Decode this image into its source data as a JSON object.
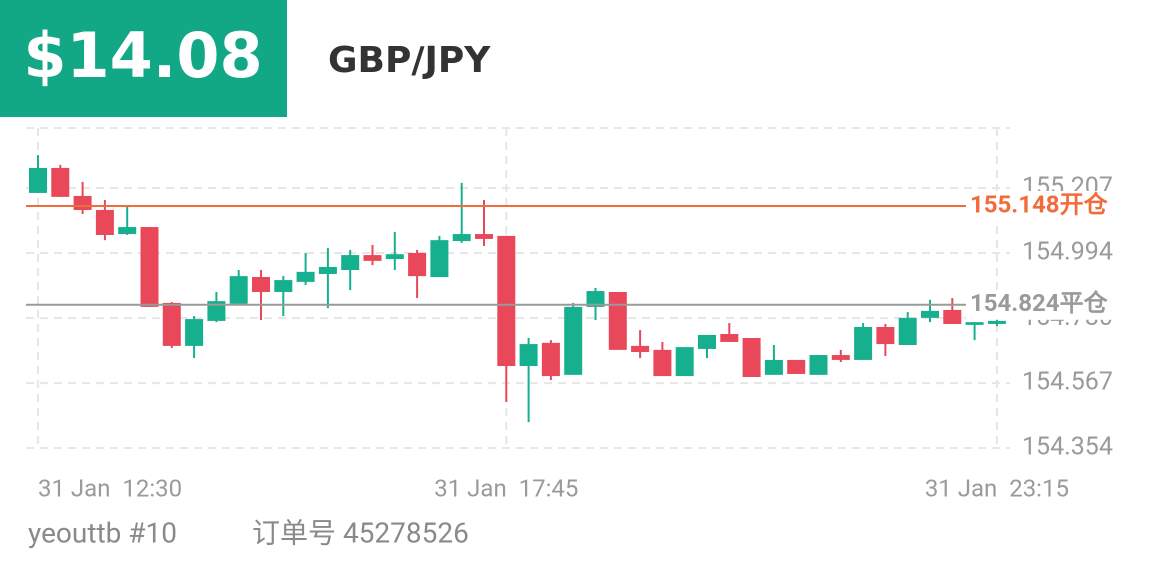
{
  "header": {
    "profit": "$14.08",
    "symbol": "GBP/JPY"
  },
  "footer": {
    "account": "yeouttb #10",
    "order": "订单号 45278526"
  },
  "chart_data": {
    "type": "candlestick",
    "categories": [
      "31 Jan  12:30",
      null,
      null,
      null,
      null,
      null,
      null,
      null,
      null,
      null,
      null,
      null,
      null,
      null,
      null,
      null,
      null,
      null,
      null,
      null,
      null,
      "31 Jan  17:45",
      null,
      null,
      null,
      null,
      null,
      null,
      null,
      null,
      null,
      null,
      null,
      null,
      null,
      null,
      null,
      null,
      null,
      null,
      null,
      null,
      null,
      "31 Jan  23:15"
    ],
    "open": [
      155.191,
      155.273,
      155.181,
      155.135,
      155.056,
      155.079,
      154.83,
      154.689,
      154.771,
      154.827,
      154.915,
      154.866,
      154.899,
      154.925,
      154.938,
      154.987,
      154.974,
      154.994,
      154.915,
      155.033,
      155.056,
      155.05,
      154.623,
      154.699,
      154.594,
      154.817,
      154.866,
      154.689,
      154.676,
      154.59,
      154.679,
      154.728,
      154.715,
      154.594,
      154.643,
      154.594,
      154.659,
      154.643,
      154.751,
      154.692,
      154.781,
      154.807,
      154.758,
      154.761
    ],
    "high": [
      155.315,
      155.283,
      155.227,
      155.168,
      155.151,
      155.079,
      154.833,
      154.787,
      154.866,
      154.938,
      154.938,
      154.918,
      154.994,
      155.01,
      155.004,
      155.02,
      155.063,
      155.004,
      155.05,
      155.224,
      155.168,
      155.05,
      154.715,
      154.708,
      154.83,
      154.879,
      154.866,
      154.741,
      154.702,
      154.685,
      154.725,
      154.764,
      154.715,
      154.692,
      154.643,
      154.659,
      154.676,
      154.764,
      154.761,
      154.8,
      154.84,
      154.846,
      154.767,
      154.781
    ],
    "low": [
      155.191,
      155.178,
      155.122,
      155.036,
      155.053,
      154.817,
      154.682,
      154.649,
      154.767,
      154.827,
      154.774,
      154.787,
      154.889,
      154.813,
      154.872,
      154.954,
      154.938,
      154.846,
      154.915,
      155.027,
      155.017,
      154.505,
      154.439,
      154.577,
      154.594,
      154.774,
      154.676,
      154.649,
      154.59,
      154.59,
      154.649,
      154.702,
      154.587,
      154.594,
      154.597,
      154.594,
      154.636,
      154.643,
      154.656,
      154.692,
      154.767,
      154.761,
      154.708,
      154.754
    ],
    "close": [
      155.273,
      155.178,
      155.135,
      155.053,
      155.079,
      154.817,
      154.689,
      154.777,
      154.836,
      154.918,
      154.866,
      154.905,
      154.932,
      154.948,
      154.987,
      154.968,
      154.99,
      154.918,
      155.036,
      155.056,
      155.04,
      154.623,
      154.695,
      154.59,
      154.817,
      154.869,
      154.676,
      154.669,
      154.59,
      154.685,
      154.725,
      154.702,
      154.587,
      154.643,
      154.597,
      154.659,
      154.643,
      154.751,
      154.695,
      154.781,
      154.804,
      154.761,
      154.767,
      154.771
    ],
    "up_color": "#17b08f",
    "down_color": "#e8485a",
    "ylim": [
      154.354,
      155.404
    ],
    "yticks": [
      154.354,
      154.567,
      {
        "value": 154.78,
        "label": "154.780"
      },
      154.994,
      155.207
    ],
    "grid": true,
    "lines": [
      {
        "value": 155.148,
        "label": "155.148开仓",
        "color": "#f26b3a"
      },
      {
        "value": 154.824,
        "label": "154.824平仓",
        "color": "#9a9a9a"
      }
    ]
  }
}
